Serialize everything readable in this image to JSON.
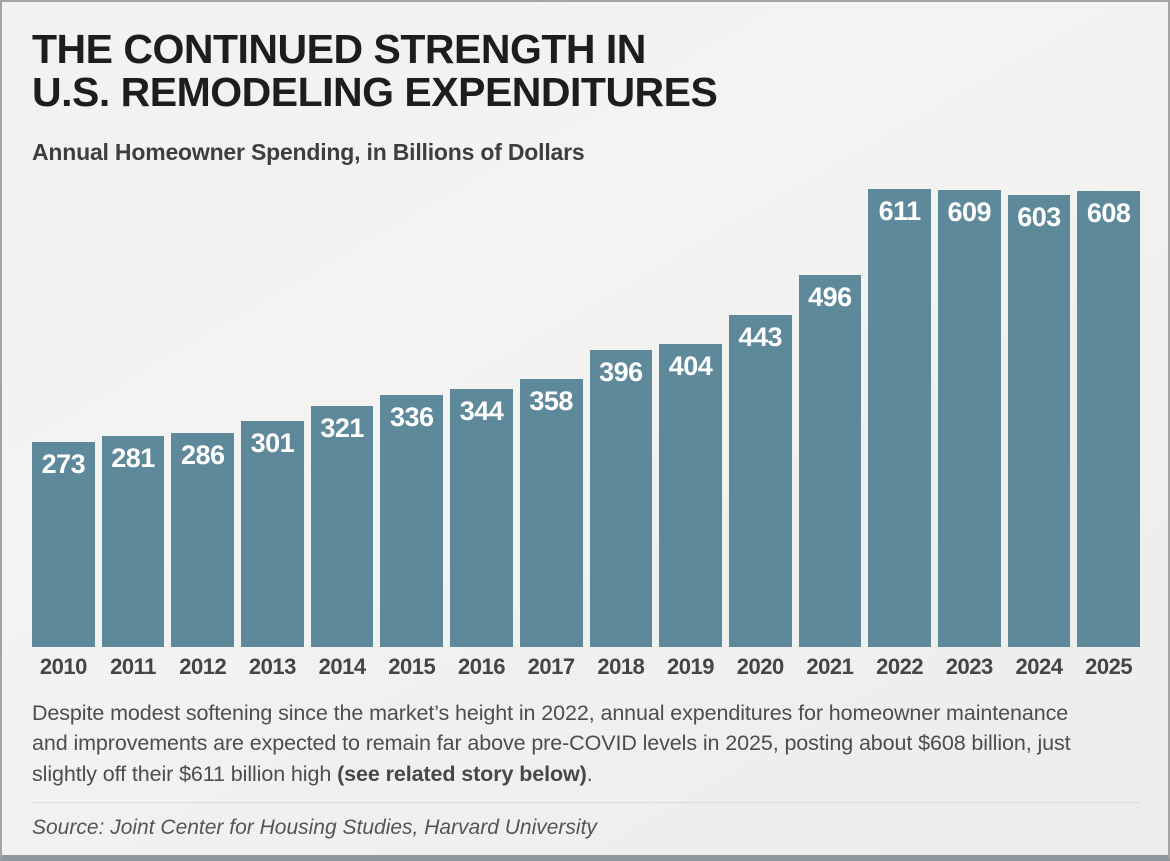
{
  "header": {
    "title_line1": "THE CONTINUED STRENGTH IN",
    "title_line2": "U.S. REMODELING EXPENDITURES",
    "subtitle": "Annual Homeowner Spending, in Billions of Dollars"
  },
  "chart_data": {
    "type": "bar",
    "title": "Annual Homeowner Spending, in Billions of Dollars",
    "categories": [
      "2010",
      "2011",
      "2012",
      "2013",
      "2014",
      "2015",
      "2016",
      "2017",
      "2018",
      "2019",
      "2020",
      "2021",
      "2022",
      "2023",
      "2024",
      "2025"
    ],
    "values": [
      273,
      281,
      286,
      301,
      321,
      336,
      344,
      358,
      396,
      404,
      443,
      496,
      611,
      609,
      603,
      608
    ],
    "xlabel": "",
    "ylabel": "",
    "ylim": [
      0,
      620
    ],
    "grid": false,
    "legend": "none",
    "data_labels": "inside-top-white",
    "bar_color": "#5d899b",
    "value_label_color": "#ffffff"
  },
  "caption": {
    "lead": "Despite modest softening since the market’s height in 2022, annual expenditures for homeowner maintenance and improvements are expected to remain far above pre-COVID levels in 2025, posting about $608 billion, just slightly off their $611 billion high ",
    "emphasis": "(see related story below)",
    "tail": "."
  },
  "source": "Source: Joint Center for Housing Studies, Harvard University",
  "colors": {
    "background": "#f1f1ef",
    "bar": "#5d899b",
    "title_text": "#1d1d1d",
    "subtitle_text": "#3e3e3e",
    "axis_label_text": "#454545",
    "caption_text": "#4d4d4d",
    "source_text": "#555553",
    "frame_bottom": "#8f98a0"
  }
}
